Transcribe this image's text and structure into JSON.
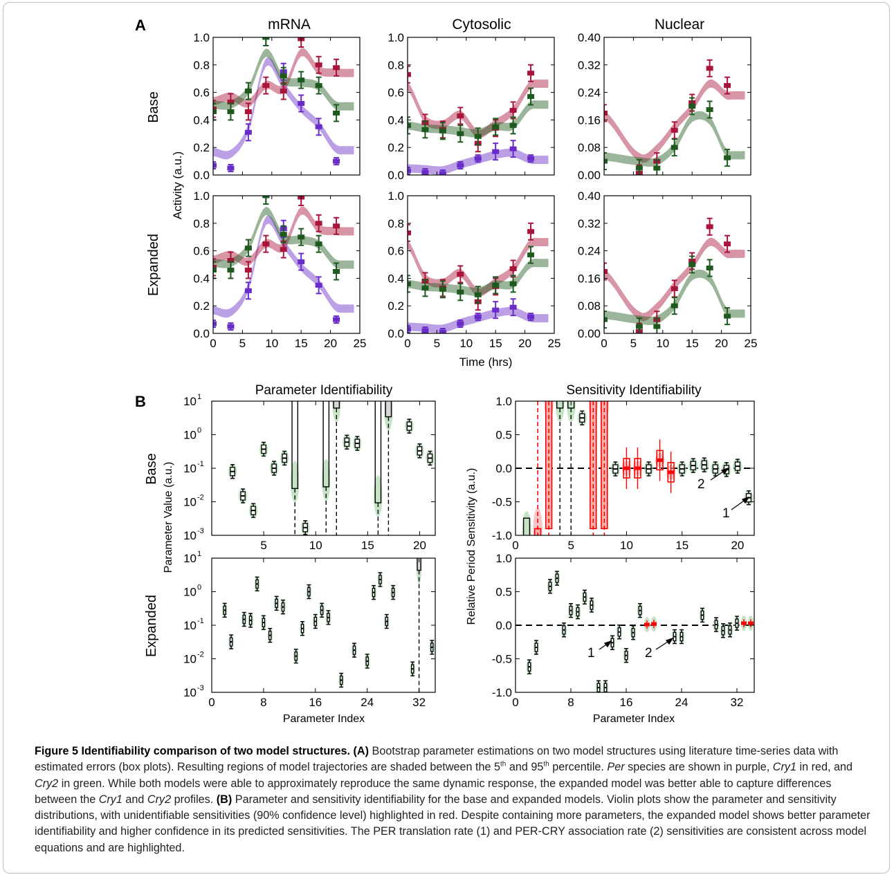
{
  "panel_labels": {
    "a": "A",
    "b": "B"
  },
  "panel_a": {
    "column_titles": [
      "mRNA",
      "Cytosolic",
      "Nuclear"
    ],
    "row_labels": [
      "Base",
      "Expanded"
    ],
    "ylabel": "Activity (a.u.)",
    "xlabel": "Time (hrs)"
  },
  "panel_b": {
    "titles": [
      "Parameter Identifiability",
      "Sensitivity Identifiability"
    ],
    "row_labels": [
      "Base",
      "Expanded"
    ],
    "ylabel_left": "Parameter Value (a.u.)",
    "ylabel_right": "Relative Period Sensitivity (a.u.)",
    "xlabel": "Parameter Index",
    "annotations": {
      "label_1": "1",
      "label_2": "2"
    }
  },
  "colors": {
    "per": "#6a2cc8",
    "cry1": "#a8143a",
    "cry2": "#1e5a1e",
    "highlight": "#ff0000",
    "violin": "#9ed09e"
  },
  "caption": {
    "figure_label": "Figure 5",
    "figure_title": "Identifiability comparison of two model structures.",
    "part_a_label": "(A)",
    "part_a_text_1": "Bootstrap parameter estimations on two model structures using literature time-series data with estimated errors (box plots). Resulting regions of model trajectories are shaded between the 5",
    "sup_1": "th",
    "part_a_text_2": "and 95",
    "sup_2": "th",
    "part_a_text_3": "percentile.",
    "per": "Per",
    "part_a_text_4": "species are shown in purple,",
    "cry1": "Cry1",
    "part_a_text_5": "in red, and",
    "cry2": "Cry2",
    "part_a_text_6": "in green. While both models were able to approximately reproduce the same dynamic response, the expanded model was better able to capture differences between the",
    "cry1_b": "Cry1",
    "part_a_text_7": "and",
    "cry2_b": "Cry2",
    "part_a_text_8": "profiles.",
    "part_b_label": "(B)",
    "part_b_text": "Parameter and sensitivity identifiability for the base and expanded models. Violin plots show the parameter and sensitivity distributions, with unidentifiable sensitivities (90% confidence level) highlighted in red. Despite containing more parameters, the expanded model shows better parameter identifiability and higher confidence in its predicted sensitivities. The PER translation rate (1) and PER-CRY association rate (2) sensitivities are consistent across model equations and are highlighted."
  },
  "chart_data": [
    {
      "type": "line",
      "panel": "A",
      "row": "Base",
      "column": "mRNA",
      "xlim": [
        0,
        25
      ],
      "ylim": [
        0,
        1.0
      ],
      "xticks": [
        0,
        5,
        10,
        15,
        20,
        25
      ],
      "yticks": [
        0.0,
        0.2,
        0.4,
        0.6,
        0.8,
        1.0
      ],
      "series": [
        {
          "name": "Per",
          "x": [
            0,
            3,
            6,
            9,
            12,
            15,
            18,
            21
          ],
          "y": [
            0.07,
            0.05,
            0.31,
            1.0,
            0.75,
            0.52,
            0.35,
            0.1
          ]
        },
        {
          "name": "Cry1",
          "x": [
            0,
            3,
            6,
            9,
            12,
            15,
            18,
            21
          ],
          "y": [
            0.48,
            0.53,
            0.46,
            0.65,
            0.61,
            0.99,
            0.8,
            0.78
          ]
        },
        {
          "name": "Cry2",
          "x": [
            0,
            3,
            6,
            9,
            12,
            15,
            18,
            21
          ],
          "y": [
            0.46,
            0.46,
            0.61,
            1.0,
            0.72,
            0.69,
            0.65,
            0.45
          ]
        }
      ]
    },
    {
      "type": "line",
      "panel": "A",
      "row": "Base",
      "column": "Cytosolic",
      "xlim": [
        0,
        25
      ],
      "ylim": [
        0,
        1.0
      ],
      "xticks": [
        0,
        5,
        10,
        15,
        20,
        25
      ],
      "yticks": [
        0.0,
        0.2,
        0.4,
        0.6,
        0.8,
        1.0
      ],
      "series": [
        {
          "name": "Per",
          "x": [
            0,
            3,
            6,
            9,
            12,
            15,
            18,
            21
          ],
          "y": [
            0.03,
            0.02,
            0.01,
            0.07,
            0.12,
            0.17,
            0.19,
            0.12
          ]
        },
        {
          "name": "Cry1",
          "x": [
            0,
            3,
            6,
            9,
            12,
            15,
            18,
            21
          ],
          "y": [
            0.73,
            0.38,
            0.33,
            0.43,
            0.23,
            0.34,
            0.47,
            0.74
          ]
        },
        {
          "name": "Cry2",
          "x": [
            0,
            3,
            6,
            9,
            12,
            15,
            18,
            21
          ],
          "y": [
            0.36,
            0.33,
            0.32,
            0.3,
            0.28,
            0.35,
            0.36,
            0.57
          ]
        }
      ]
    },
    {
      "type": "line",
      "panel": "A",
      "row": "Base",
      "column": "Nuclear",
      "xlim": [
        0,
        25
      ],
      "ylim": [
        0,
        0.4
      ],
      "xticks": [
        0,
        5,
        10,
        15,
        20,
        25
      ],
      "yticks": [
        0.0,
        0.08,
        0.16,
        0.24,
        0.32,
        0.4
      ],
      "series": [
        {
          "name": "Cry1",
          "x": [
            0,
            6,
            9,
            12,
            15,
            18,
            21
          ],
          "y": [
            0.18,
            0.005,
            0.04,
            0.13,
            0.21,
            0.31,
            0.26
          ]
        },
        {
          "name": "Cry2",
          "x": [
            0,
            6,
            9,
            12,
            15,
            18,
            21
          ],
          "y": [
            0.04,
            0.02,
            0.02,
            0.08,
            0.2,
            0.19,
            0.05
          ]
        }
      ]
    },
    {
      "type": "line",
      "panel": "A",
      "row": "Expanded",
      "column": "mRNA",
      "xlim": [
        0,
        25
      ],
      "ylim": [
        0,
        1.0
      ],
      "xticks": [
        0,
        5,
        10,
        15,
        20,
        25
      ],
      "yticks": [
        0.0,
        0.2,
        0.4,
        0.6,
        0.8,
        1.0
      ],
      "series": [
        {
          "name": "Per",
          "x": [
            0,
            3,
            6,
            9,
            12,
            15,
            18,
            21
          ],
          "y": [
            0.07,
            0.05,
            0.31,
            1.0,
            0.76,
            0.52,
            0.35,
            0.1
          ]
        },
        {
          "name": "Cry1",
          "x": [
            0,
            3,
            6,
            9,
            12,
            15,
            18,
            21
          ],
          "y": [
            0.48,
            0.53,
            0.46,
            0.65,
            0.61,
            0.99,
            0.8,
            0.78
          ]
        },
        {
          "name": "Cry2",
          "x": [
            0,
            3,
            6,
            9,
            12,
            15,
            18,
            21
          ],
          "y": [
            0.46,
            0.46,
            0.62,
            1.0,
            0.72,
            0.7,
            0.65,
            0.45
          ]
        }
      ]
    },
    {
      "type": "line",
      "panel": "A",
      "row": "Expanded",
      "column": "Cytosolic",
      "xlim": [
        0,
        25
      ],
      "ylim": [
        0,
        1.0
      ],
      "xticks": [
        0,
        5,
        10,
        15,
        20,
        25
      ],
      "yticks": [
        0.0,
        0.2,
        0.4,
        0.6,
        0.8,
        1.0
      ],
      "series": [
        {
          "name": "Per",
          "x": [
            0,
            3,
            6,
            9,
            12,
            15,
            18,
            21
          ],
          "y": [
            0.03,
            0.02,
            0.01,
            0.07,
            0.12,
            0.17,
            0.19,
            0.12
          ]
        },
        {
          "name": "Cry1",
          "x": [
            0,
            3,
            6,
            9,
            12,
            15,
            18,
            21
          ],
          "y": [
            0.73,
            0.38,
            0.33,
            0.43,
            0.23,
            0.34,
            0.47,
            0.74
          ]
        },
        {
          "name": "Cry2",
          "x": [
            0,
            3,
            6,
            9,
            12,
            15,
            18,
            21
          ],
          "y": [
            0.36,
            0.33,
            0.32,
            0.3,
            0.28,
            0.35,
            0.36,
            0.57
          ]
        }
      ]
    },
    {
      "type": "line",
      "panel": "A",
      "row": "Expanded",
      "column": "Nuclear",
      "xlim": [
        0,
        25
      ],
      "ylim": [
        0,
        0.4
      ],
      "xticks": [
        0,
        5,
        10,
        15,
        20,
        25
      ],
      "yticks": [
        0.0,
        0.08,
        0.16,
        0.24,
        0.32,
        0.4
      ],
      "series": [
        {
          "name": "Cry1",
          "x": [
            0,
            6,
            9,
            12,
            15,
            18,
            21
          ],
          "y": [
            0.18,
            0.005,
            0.04,
            0.13,
            0.21,
            0.31,
            0.26
          ]
        },
        {
          "name": "Cry2",
          "x": [
            0,
            6,
            9,
            12,
            15,
            18,
            21
          ],
          "y": [
            0.04,
            0.02,
            0.02,
            0.08,
            0.2,
            0.19,
            0.05
          ]
        }
      ]
    },
    {
      "type": "scatter",
      "panel": "B",
      "row": "Base",
      "title": "Parameter Identifiability",
      "yscale": "log",
      "xlim": [
        0,
        21.5
      ],
      "ylim": [
        0.001,
        10
      ],
      "xticks": [
        5,
        10,
        15,
        20
      ],
      "yticks": [
        0.001,
        0.01,
        0.1,
        1,
        10
      ],
      "x": [
        2,
        3,
        4,
        5,
        6,
        7,
        8,
        9,
        11,
        12,
        13,
        14,
        16,
        17,
        19,
        20,
        21
      ],
      "y": [
        0.08,
        0.015,
        0.0055,
        0.37,
        0.1,
        0.2,
        0.04,
        0.0017,
        0.045,
        10,
        0.6,
        0.55,
        0.015,
        5.5,
        1.8,
        0.33,
        0.2
      ]
    },
    {
      "type": "scatter",
      "panel": "B",
      "row": "Base",
      "title": "Sensitivity Identifiability",
      "xlim": [
        0,
        21.5
      ],
      "ylim": [
        -1.0,
        1.0
      ],
      "xticks": [
        0,
        5,
        10,
        15,
        20
      ],
      "yticks": [
        -1.0,
        -0.5,
        0.0,
        0.5,
        1.0
      ],
      "x": [
        1,
        2,
        3,
        4,
        5,
        6,
        7,
        8,
        9,
        10,
        11,
        12,
        13,
        14,
        15,
        16,
        17,
        18,
        19,
        20,
        21
      ],
      "y": [
        -0.95,
        -0.9,
        1.0,
        1.0,
        1.0,
        0.75,
        1.0,
        1.0,
        -0.01,
        0.0,
        0.0,
        -0.01,
        0.12,
        -0.06,
        -0.01,
        0.04,
        0.05,
        -0.01,
        -0.02,
        0.03,
        -0.44
      ]
    },
    {
      "type": "scatter",
      "panel": "B",
      "row": "Expanded",
      "title": "Parameter Identifiability",
      "yscale": "log",
      "xlim": [
        0,
        34.5
      ],
      "ylim": [
        0.001,
        10
      ],
      "xticks": [
        0,
        8,
        16,
        24,
        32
      ],
      "yticks": [
        0.001,
        0.01,
        0.1,
        1,
        10
      ],
      "x": [
        2,
        3,
        5,
        6,
        7,
        8,
        9,
        10,
        11,
        13,
        14,
        15,
        16,
        17,
        18,
        20,
        22,
        24,
        25,
        26,
        27,
        28,
        31,
        32,
        34
      ],
      "y": [
        0.28,
        0.032,
        0.15,
        0.14,
        1.7,
        0.12,
        0.05,
        0.45,
        0.35,
        0.012,
        0.08,
        1.0,
        0.13,
        0.28,
        0.17,
        0.0023,
        0.018,
        0.0085,
        0.95,
        2.3,
        0.13,
        0.95,
        0.005,
        7,
        0.022
      ]
    },
    {
      "type": "scatter",
      "panel": "B",
      "row": "Expanded",
      "title": "Sensitivity Identifiability",
      "xlim": [
        0,
        34.5
      ],
      "ylim": [
        -1.0,
        1.0
      ],
      "xticks": [
        0,
        8,
        16,
        24,
        32
      ],
      "yticks": [
        -1.0,
        -0.5,
        0.0,
        0.5,
        1.0
      ],
      "x": [
        2,
        3,
        5,
        6,
        7,
        8,
        9,
        10,
        11,
        12,
        13,
        14,
        15,
        16,
        17,
        18,
        19,
        20,
        23,
        24,
        27,
        29,
        30,
        31,
        32,
        33,
        34
      ],
      "y": [
        -0.62,
        -0.33,
        0.58,
        0.7,
        -0.07,
        0.22,
        0.2,
        0.42,
        0.3,
        -0.93,
        -0.93,
        -0.26,
        -0.1,
        -0.45,
        -0.11,
        0.22,
        0.01,
        0.02,
        -0.17,
        -0.17,
        0.15,
        0.01,
        -0.08,
        -0.07,
        0.03,
        0.03,
        0.03
      ]
    }
  ]
}
